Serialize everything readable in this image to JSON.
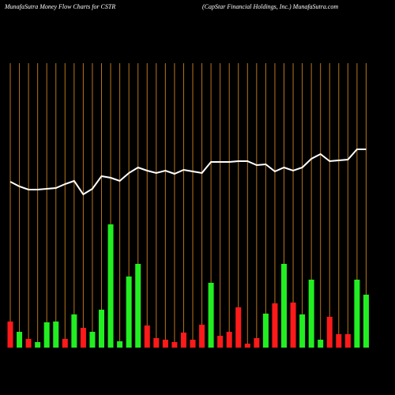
{
  "chart_data": {
    "type": "money-flow",
    "title": "MunafaSutra  Money Flow  Charts for CSTR",
    "subtitle": "(CapStar Financial Holdings, Inc.) MunafaSutra.com",
    "categories": [
      null,
      null,
      null,
      null,
      null,
      null,
      null,
      null,
      null,
      null,
      null,
      null,
      null,
      null,
      null,
      null,
      null,
      null,
      null,
      null,
      null,
      null,
      null,
      null,
      null,
      null,
      null,
      null,
      null,
      null,
      null,
      null,
      null,
      null,
      null,
      null,
      null,
      null,
      null,
      null
    ],
    "grid_color": "#b8741a",
    "series": [
      {
        "kind": "bar",
        "values": [
          33,
          20,
          11,
          7,
          32,
          33,
          11,
          42,
          25,
          20,
          48,
          156,
          8,
          90,
          106,
          28,
          12,
          10,
          7,
          19,
          10,
          29,
          82,
          15,
          20,
          51,
          5,
          12,
          43,
          56,
          106,
          57,
          42,
          86,
          10,
          39,
          17,
          17,
          86,
          67
        ],
        "colors": [
          "#ff1a1a",
          "#22ee22",
          "#ff1a1a",
          "#22ee22",
          "#22ee22",
          "#22ee22",
          "#ff1a1a",
          "#22ee22",
          "#ff1a1a",
          "#22ee22",
          "#22ee22",
          "#22ee22",
          "#22ee22",
          "#22ee22",
          "#22ee22",
          "#ff1a1a",
          "#ff1a1a",
          "#ff1a1a",
          "#ff1a1a",
          "#ff1a1a",
          "#ff1a1a",
          "#ff1a1a",
          "#22ee22",
          "#ff1a1a",
          "#ff1a1a",
          "#ff1a1a",
          "#ff1a1a",
          "#ff1a1a",
          "#22ee22",
          "#ff1a1a",
          "#22ee22",
          "#ff1a1a",
          "#22ee22",
          "#22ee22",
          "#22ee22",
          "#ff1a1a",
          "#ff1a1a",
          "#ff1a1a",
          "#22ee22",
          "#22ee22"
        ]
      },
      {
        "kind": "line",
        "color": "#ffffff",
        "values": [
          210,
          204,
          200,
          200,
          201,
          202,
          207,
          211,
          194,
          201,
          217,
          215,
          211,
          221,
          228,
          224,
          221,
          224,
          220,
          225,
          223,
          221,
          235,
          235,
          235,
          236,
          236,
          231,
          232,
          223,
          228,
          224,
          228,
          239,
          245,
          236,
          237,
          238,
          251,
          251
        ]
      }
    ]
  }
}
